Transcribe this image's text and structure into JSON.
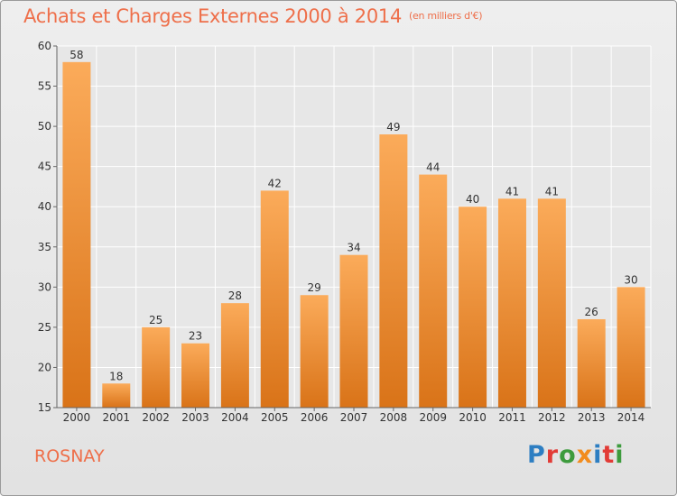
{
  "title": "Achats et Charges Externes 2000 à 2014",
  "unit": "(en milliers d'€)",
  "commune": "ROSNAY",
  "logo": {
    "letters": [
      {
        "ch": "P",
        "color": "#2d7ec2"
      },
      {
        "ch": "r",
        "color": "#e23b36"
      },
      {
        "ch": "o",
        "color": "#3d9b3d"
      },
      {
        "ch": "x",
        "color": "#f28c1e"
      },
      {
        "ch": "i",
        "color": "#2d7ec2"
      },
      {
        "ch": "t",
        "color": "#e23b36"
      },
      {
        "ch": "i",
        "color": "#3d9b3d"
      }
    ]
  },
  "colors": {
    "bar_light": "#fbab5a",
    "bar_dark": "#d97318",
    "title": "#ee6f4a"
  },
  "chart_data": {
    "type": "bar",
    "categories": [
      "2000",
      "2001",
      "2002",
      "2003",
      "2004",
      "2005",
      "2006",
      "2007",
      "2008",
      "2009",
      "2010",
      "2011",
      "2012",
      "2013",
      "2014"
    ],
    "values": [
      58,
      18,
      25,
      23,
      28,
      42,
      29,
      34,
      49,
      44,
      40,
      41,
      41,
      26,
      30
    ],
    "ylim": [
      15,
      60
    ],
    "yticks": [
      15,
      20,
      25,
      30,
      35,
      40,
      45,
      50,
      55,
      60
    ],
    "grid": true,
    "title": "Achats et Charges Externes 2000 à 2014",
    "xlabel": "",
    "ylabel": ""
  }
}
